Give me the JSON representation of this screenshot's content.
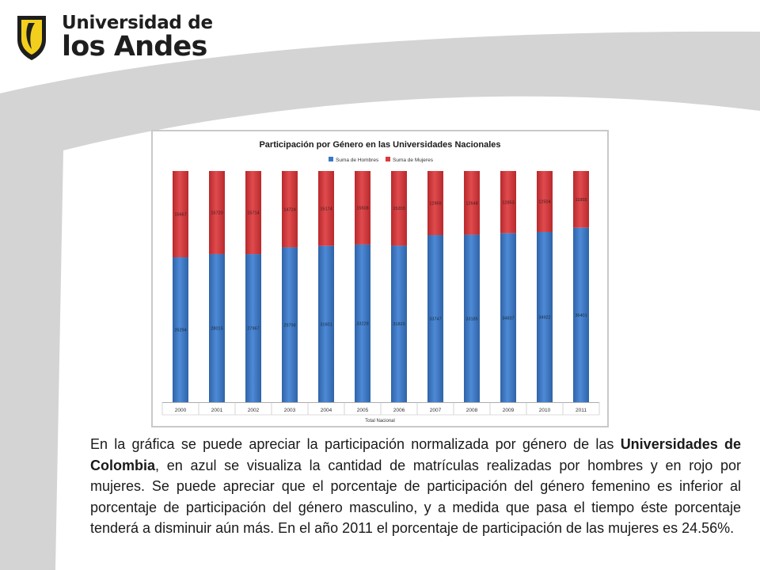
{
  "header": {
    "logo_line1": "Universidad de",
    "logo_line2": "los Andes"
  },
  "colors": {
    "hombres": "#3a78c8",
    "mujeres": "#d93a3d",
    "swoosh": "#d4d4d4",
    "logo_yellow": "#f2cf1d"
  },
  "chart_data": {
    "type": "bar",
    "stacked": "100%",
    "title": "Participación por Género en las Universidades Nacionales",
    "xlabel": "Total Nacional",
    "ylabel": "",
    "legend_position": "top",
    "categories": [
      "2000",
      "2001",
      "2002",
      "2003",
      "2004",
      "2005",
      "2006",
      "2007",
      "2008",
      "2009",
      "2010",
      "2011"
    ],
    "series": [
      {
        "name": "Suma de Hombres",
        "values": [
          26294,
          28015,
          27967,
          29798,
          31601,
          33228,
          31820,
          33747,
          33185,
          34837,
          34922,
          36401
        ]
      },
      {
        "name": "Suma de Mujeres",
        "values": [
          15667,
          15720,
          15714,
          14724,
          15174,
          15508,
          15203,
          12959,
          12648,
          12853,
          12504,
          11855
        ]
      }
    ]
  },
  "text": {
    "p1": "En la gráfica se puede apreciar la participación normalizada por género de las ",
    "bold": "Universidades de Colombia",
    "p2": ", en azul se visualiza la cantidad de matrículas realizadas por hombres y en rojo por mujeres. Se puede apreciar que el porcentaje de participación del género femenino es inferior al porcentaje de participación del género masculino, y a medida que pasa el tiempo éste porcentaje tenderá a disminuir aún más. En el año 2011 el porcentaje de participación de las mujeres es 24.56%."
  }
}
